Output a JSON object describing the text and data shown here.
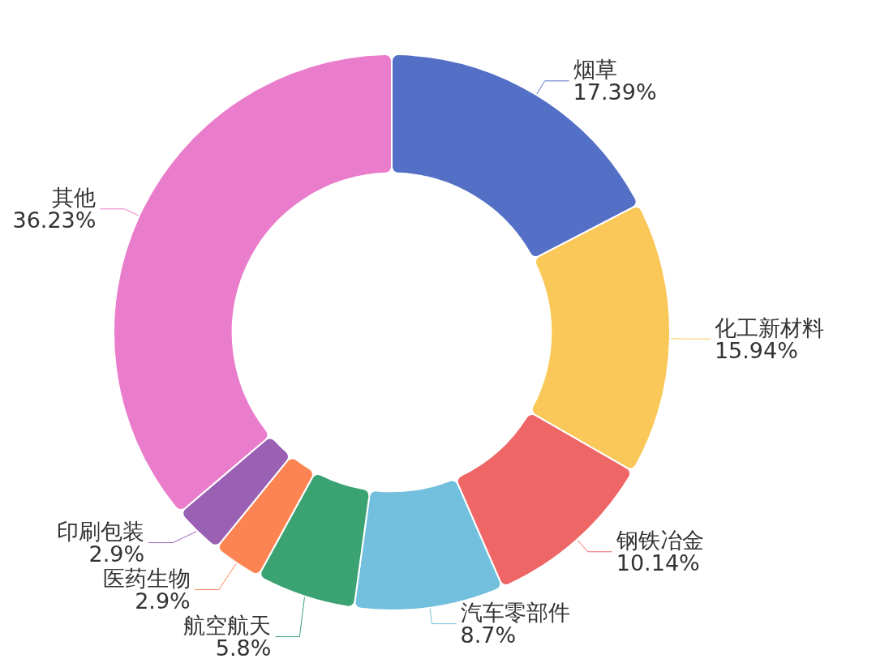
{
  "chart_data": {
    "type": "donut",
    "categories": [
      "烟草",
      "化工新材料",
      "钢铁冶金",
      "汽车零部件",
      "航空航天",
      "医药生物",
      "印刷包装",
      "其他"
    ],
    "values": [
      17.39,
      15.94,
      10.14,
      8.7,
      5.8,
      2.9,
      2.9,
      36.23
    ],
    "value_labels": [
      "17.39%",
      "15.94%",
      "10.14%",
      "8.7%",
      "5.8%",
      "2.9%",
      "2.9%",
      "36.23%"
    ],
    "colors": [
      "#5470c6",
      "#fac858",
      "#ee6666",
      "#73c0de",
      "#3ba272",
      "#fc8452",
      "#9a60b4",
      "#ea7ccc"
    ],
    "legend": false
  }
}
